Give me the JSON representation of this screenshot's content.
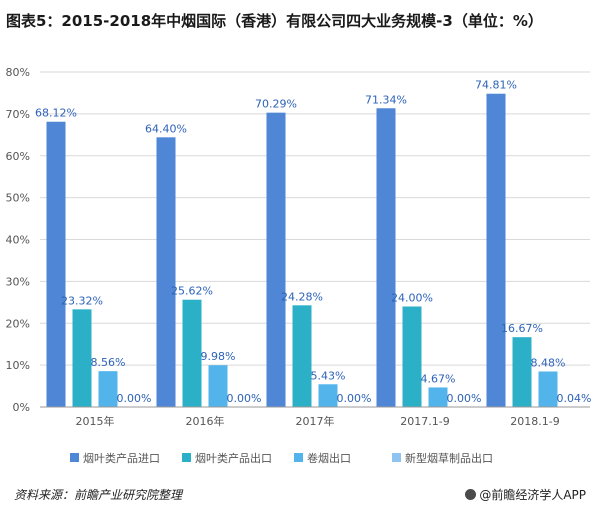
{
  "title": "图表5：2015-2018年中烟国际（香港）有限公司四大业务规模-3（单位：%）",
  "source": "资料来源：前瞻产业研究院整理",
  "brand": "@前瞻经济学人APP",
  "chart_data": {
    "type": "bar",
    "categories": [
      "2015年",
      "2016年",
      "2017年",
      "2017.1-9",
      "2018.1-9"
    ],
    "series": [
      {
        "name": "烟叶类产品进口",
        "color": "#4f86d6",
        "values": [
          68.12,
          64.4,
          70.29,
          71.34,
          74.81
        ],
        "labels": [
          "68.12%",
          "64.40%",
          "70.29%",
          "71.34%",
          "74.81%"
        ]
      },
      {
        "name": "烟叶类产品出口",
        "color": "#2bb0c8",
        "values": [
          23.32,
          25.62,
          24.28,
          24.0,
          16.67
        ],
        "labels": [
          "23.32%",
          "25.62%",
          "24.28%",
          "24.00%",
          "16.67%"
        ]
      },
      {
        "name": "卷烟出口",
        "color": "#52b4ea",
        "values": [
          8.56,
          9.98,
          5.43,
          4.67,
          8.48
        ],
        "labels": [
          "8.56%",
          "9.98%",
          "5.43%",
          "4.67%",
          "8.48%"
        ]
      },
      {
        "name": "新型烟草制品出口",
        "color": "#8fc3f2",
        "values": [
          0.0,
          0.0,
          0.0,
          0.0,
          0.04
        ],
        "labels": [
          "0.00%",
          "0.00%",
          "0.00%",
          "0.00%",
          "0.04%"
        ]
      }
    ],
    "yticks": [
      "0%",
      "10%",
      "20%",
      "30%",
      "40%",
      "50%",
      "60%",
      "70%",
      "80%"
    ],
    "ylim": [
      0,
      80
    ],
    "grid": true,
    "legend": "bottom",
    "label_color": "#2e63b8"
  }
}
